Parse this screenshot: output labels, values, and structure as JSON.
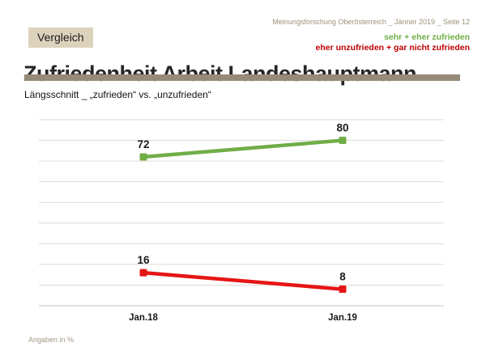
{
  "meta": {
    "header": "Meinungsforschung Oberösterreich _ Jänner 2019 _ Seite 12",
    "footer": "Angaben in %"
  },
  "badge": "Vergleich",
  "title": "Zufriedenheit Arbeit Landeshauptmann",
  "subtitle": "Längsschnitt _ „zufrieden“ vs. „unzufrieden“",
  "legend": {
    "satisfied": "sehr + eher zufrieden",
    "unsatisfied": "eher unzufrieden + gar nicht zufrieden"
  },
  "colors": {
    "green": "#70ad47",
    "red": "#e61515",
    "legend_red": "#c00000",
    "taupe_rule": "#958b78",
    "badge_bg": "#ddd3bc",
    "meta_text": "#9c9277",
    "gridline": "#dedbd6",
    "axis_line": "#c9c6c1",
    "label_text": "#1a1a1a"
  },
  "chart_data": {
    "type": "line",
    "title": "Zufriedenheit Arbeit Landeshauptmann",
    "subtitle": "Längsschnitt _ „zufrieden“ vs. „unzufrieden“",
    "categories": [
      "Jan.18",
      "Jan.19"
    ],
    "series": [
      {
        "name": "sehr + eher zufrieden",
        "values": [
          72,
          80
        ],
        "color": "#70ad47"
      },
      {
        "name": "eher unzufrieden + gar nicht zufrieden",
        "values": [
          16,
          8
        ],
        "color": "#e61515"
      }
    ],
    "xlabel": "",
    "ylabel": "",
    "ylim": [
      0,
      90
    ],
    "gridline_step": 10,
    "grid": true,
    "y_axis_labels_visible": false,
    "data_labels": true,
    "legend_position": "top-right",
    "unit": "%"
  }
}
